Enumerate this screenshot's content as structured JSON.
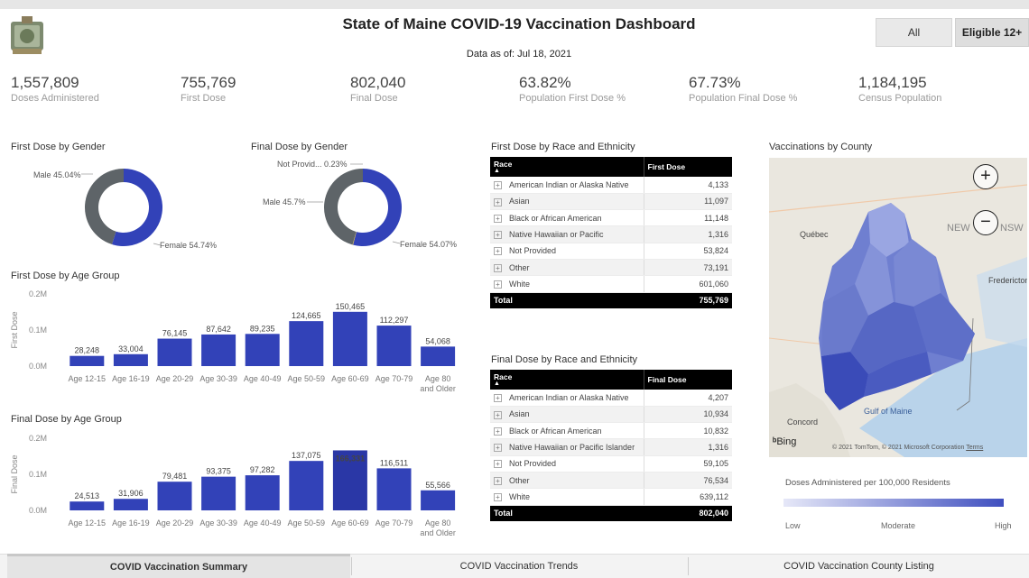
{
  "header": {
    "title": "State of Maine COVID-19 Vaccination Dashboard",
    "as_of": "Data as of: Jul 18, 2021",
    "filter_all": "All",
    "filter_eligible": "Eligible 12+"
  },
  "kpis": [
    {
      "value": "1,557,809",
      "label": "Doses Administered"
    },
    {
      "value": "755,769",
      "label": "First Dose"
    },
    {
      "value": "802,040",
      "label": "Final Dose"
    },
    {
      "value": "63.82%",
      "label": "Population First Dose %"
    },
    {
      "value": "67.73%",
      "label": "Population Final Dose %"
    },
    {
      "value": "1,184,195",
      "label": "Census Population"
    }
  ],
  "gender_first": {
    "title": "First Dose by Gender",
    "male_label": "Male 45.04%",
    "female_label": "Female 54.74%"
  },
  "gender_final": {
    "title": "Final Dose by Gender",
    "notprov_label": "Not Provid... 0.23%",
    "male_label": "Male 45.7%",
    "female_label": "Female 54.07%"
  },
  "first_race": {
    "title": "First Dose by Race and Ethnicity",
    "col_race": "Race",
    "col_value": "First Dose",
    "rows": [
      {
        "race": "American Indian or Alaska Native",
        "value": "4,133"
      },
      {
        "race": "Asian",
        "value": "11,097"
      },
      {
        "race": "Black or African American",
        "value": "11,148"
      },
      {
        "race": "Native Hawaiian or Pacific",
        "value": "1,316"
      },
      {
        "race": "Not Provided",
        "value": "53,824"
      },
      {
        "race": "Other",
        "value": "73,191"
      },
      {
        "race": "White",
        "value": "601,060"
      }
    ],
    "total_label": "Total",
    "total_value": "755,769"
  },
  "final_race": {
    "title": "Final Dose by Race and Ethnicity",
    "col_race": "Race",
    "col_value": "Final Dose",
    "rows": [
      {
        "race": "American Indian or Alaska Native",
        "value": "4,207"
      },
      {
        "race": "Asian",
        "value": "10,934"
      },
      {
        "race": "Black or African American",
        "value": "10,832"
      },
      {
        "race": "Native Hawaiian or Pacific Islander",
        "value": "1,316"
      },
      {
        "race": "Not Provided",
        "value": "59,105"
      },
      {
        "race": "Other",
        "value": "76,534"
      },
      {
        "race": "White",
        "value": "639,112"
      }
    ],
    "total_label": "Total",
    "total_value": "802,040"
  },
  "map": {
    "title": "Vaccinations by County",
    "labels": {
      "quebec": "Québec",
      "new": "NEW",
      "nsw": "NSW",
      "fredericton": "Fredericton",
      "concord": "Concord",
      "gulf": "Gulf of Maine",
      "bing": "Bing",
      "copyright": "© 2021 TomTom, © 2021 Microsoft Corporation",
      "terms": "Terms"
    },
    "zoom_in": "+",
    "zoom_out": "−",
    "legend_title": "Doses Administered per 100,000 Residents",
    "legend_low": "Low",
    "legend_mid": "Moderate",
    "legend_high": "High"
  },
  "tabs": [
    {
      "label": "COVID Vaccination Summary"
    },
    {
      "label": "COVID Vaccination Trends"
    },
    {
      "label": "COVID Vaccination County Listing"
    }
  ],
  "colors": {
    "bar": "#3242b8",
    "donut_female": "#3242b8",
    "donut_male": "#5e6468",
    "highlight_bar": "#2a37a6"
  },
  "chart_data": [
    {
      "type": "pie",
      "title": "First Dose by Gender",
      "categories": [
        "Male",
        "Female"
      ],
      "values": [
        45.04,
        54.74
      ]
    },
    {
      "type": "pie",
      "title": "Final Dose by Gender",
      "categories": [
        "Not Provid...",
        "Male",
        "Female"
      ],
      "values": [
        0.23,
        45.7,
        54.07
      ]
    },
    {
      "type": "bar",
      "title": "First Dose by Age Group",
      "ylabel": "First Dose",
      "ylim": [
        0,
        200000
      ],
      "yticks": [
        "0.0M",
        "0.1M",
        "0.2M"
      ],
      "categories": [
        "Age 12-15",
        "Age 16-19",
        "Age 20-29",
        "Age 30-39",
        "Age 40-49",
        "Age 50-59",
        "Age 60-69",
        "Age 70-79",
        "Age 80 and Older"
      ],
      "values": [
        28248,
        33004,
        76145,
        87642,
        89235,
        124665,
        150465,
        112297,
        54068
      ],
      "labels": [
        "28,248",
        "33,004",
        "76,145",
        "87,642",
        "89,235",
        "124,665",
        "150,465",
        "112,297",
        "54,068"
      ]
    },
    {
      "type": "bar",
      "title": "Final Dose by Age Group",
      "ylabel": "Final Dose",
      "ylim": [
        0,
        200000
      ],
      "yticks": [
        "0.0M",
        "0.1M",
        "0.2M"
      ],
      "categories": [
        "Age 12-15",
        "Age 16-19",
        "Age 20-29",
        "Age 30-39",
        "Age 40-49",
        "Age 50-59",
        "Age 60-69",
        "Age 70-79",
        "Age 80 and Older"
      ],
      "values": [
        24513,
        31906,
        79481,
        93375,
        97282,
        137075,
        166331,
        116511,
        55566
      ],
      "labels": [
        "24,513",
        "31,906",
        "79,481",
        "93,375",
        "97,282",
        "137,075",
        "166,331",
        "116,511",
        "55,566"
      ]
    }
  ]
}
